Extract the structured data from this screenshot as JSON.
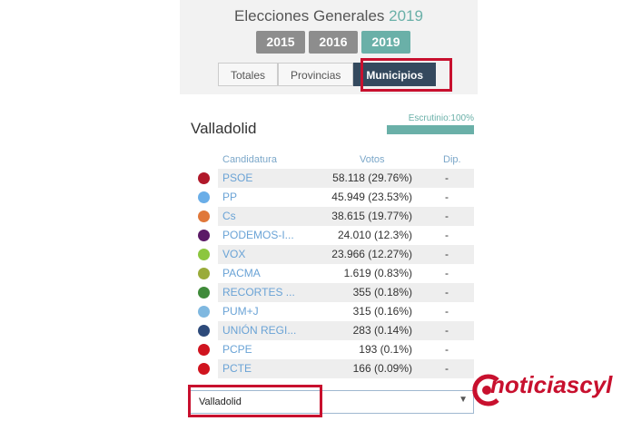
{
  "header": {
    "title_main": "Elecciones Generales",
    "title_year": "2019",
    "years": [
      "2015",
      "2016",
      "2019"
    ],
    "active_year": "2019",
    "tabs": [
      "Totales",
      "Provincias",
      "Municipios"
    ],
    "active_tab": "Municipios"
  },
  "location": {
    "name": "Valladolid",
    "escrutinio_label": "Escrutinio:100%",
    "escrutinio_pct": 100
  },
  "table": {
    "columns": [
      "Candidatura",
      "Votos",
      "Dip."
    ],
    "rows": [
      {
        "party": "PSOE",
        "votes": "58.118 (29.76%)",
        "dip": "-",
        "color": "#b0182a"
      },
      {
        "party": "PP",
        "votes": "45.949 (23.53%)",
        "dip": "-",
        "color": "#6aaee8"
      },
      {
        "party": "Cs",
        "votes": "38.615 (19.77%)",
        "dip": "-",
        "color": "#e0783a"
      },
      {
        "party": "PODEMOS-I...",
        "votes": "24.010 (12.3%)",
        "dip": "-",
        "color": "#5b1a66"
      },
      {
        "party": "VOX",
        "votes": "23.966 (12.27%)",
        "dip": "-",
        "color": "#8cc63f"
      },
      {
        "party": "PACMA",
        "votes": "1.619 (0.83%)",
        "dip": "-",
        "color": "#9aab3a"
      },
      {
        "party": "RECORTES ...",
        "votes": "355 (0.18%)",
        "dip": "-",
        "color": "#3f8a3a"
      },
      {
        "party": "PUM+J",
        "votes": "315 (0.16%)",
        "dip": "-",
        "color": "#7fb8e0"
      },
      {
        "party": "UNIÓN REGI...",
        "votes": "283 (0.14%)",
        "dip": "-",
        "color": "#2d4a7a"
      },
      {
        "party": "PCPE",
        "votes": "193 (0.1%)",
        "dip": "-",
        "color": "#d0141f"
      },
      {
        "party": "PCTE",
        "votes": "166 (0.09%)",
        "dip": "-",
        "color": "#d0141f"
      }
    ]
  },
  "select": {
    "value": "Valladolid"
  },
  "logo": {
    "text": "noticiascyl"
  }
}
